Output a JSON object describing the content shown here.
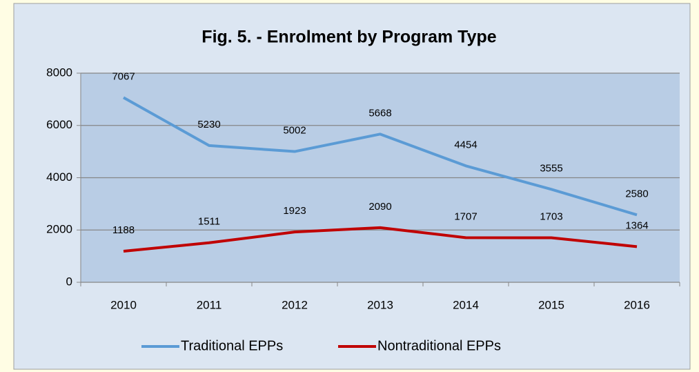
{
  "chart_data": {
    "type": "line",
    "title": "Fig. 5. - Enrolment by Program Type",
    "categories": [
      "2010",
      "2011",
      "2012",
      "2013",
      "2014",
      "2015",
      "2016"
    ],
    "series": [
      {
        "name": "Traditional EPPs",
        "color": "#5b9bd5",
        "values": [
          7067,
          5230,
          5002,
          5668,
          4454,
          3555,
          2580
        ]
      },
      {
        "name": "Nontraditional EPPs",
        "color": "#c00000",
        "values": [
          1188,
          1511,
          1923,
          2090,
          1707,
          1703,
          1364
        ]
      }
    ],
    "ylim": [
      0,
      8000
    ],
    "yticks": [
      0,
      2000,
      4000,
      6000,
      8000
    ],
    "grid": true,
    "legend": "bottom",
    "data_labels": true
  }
}
